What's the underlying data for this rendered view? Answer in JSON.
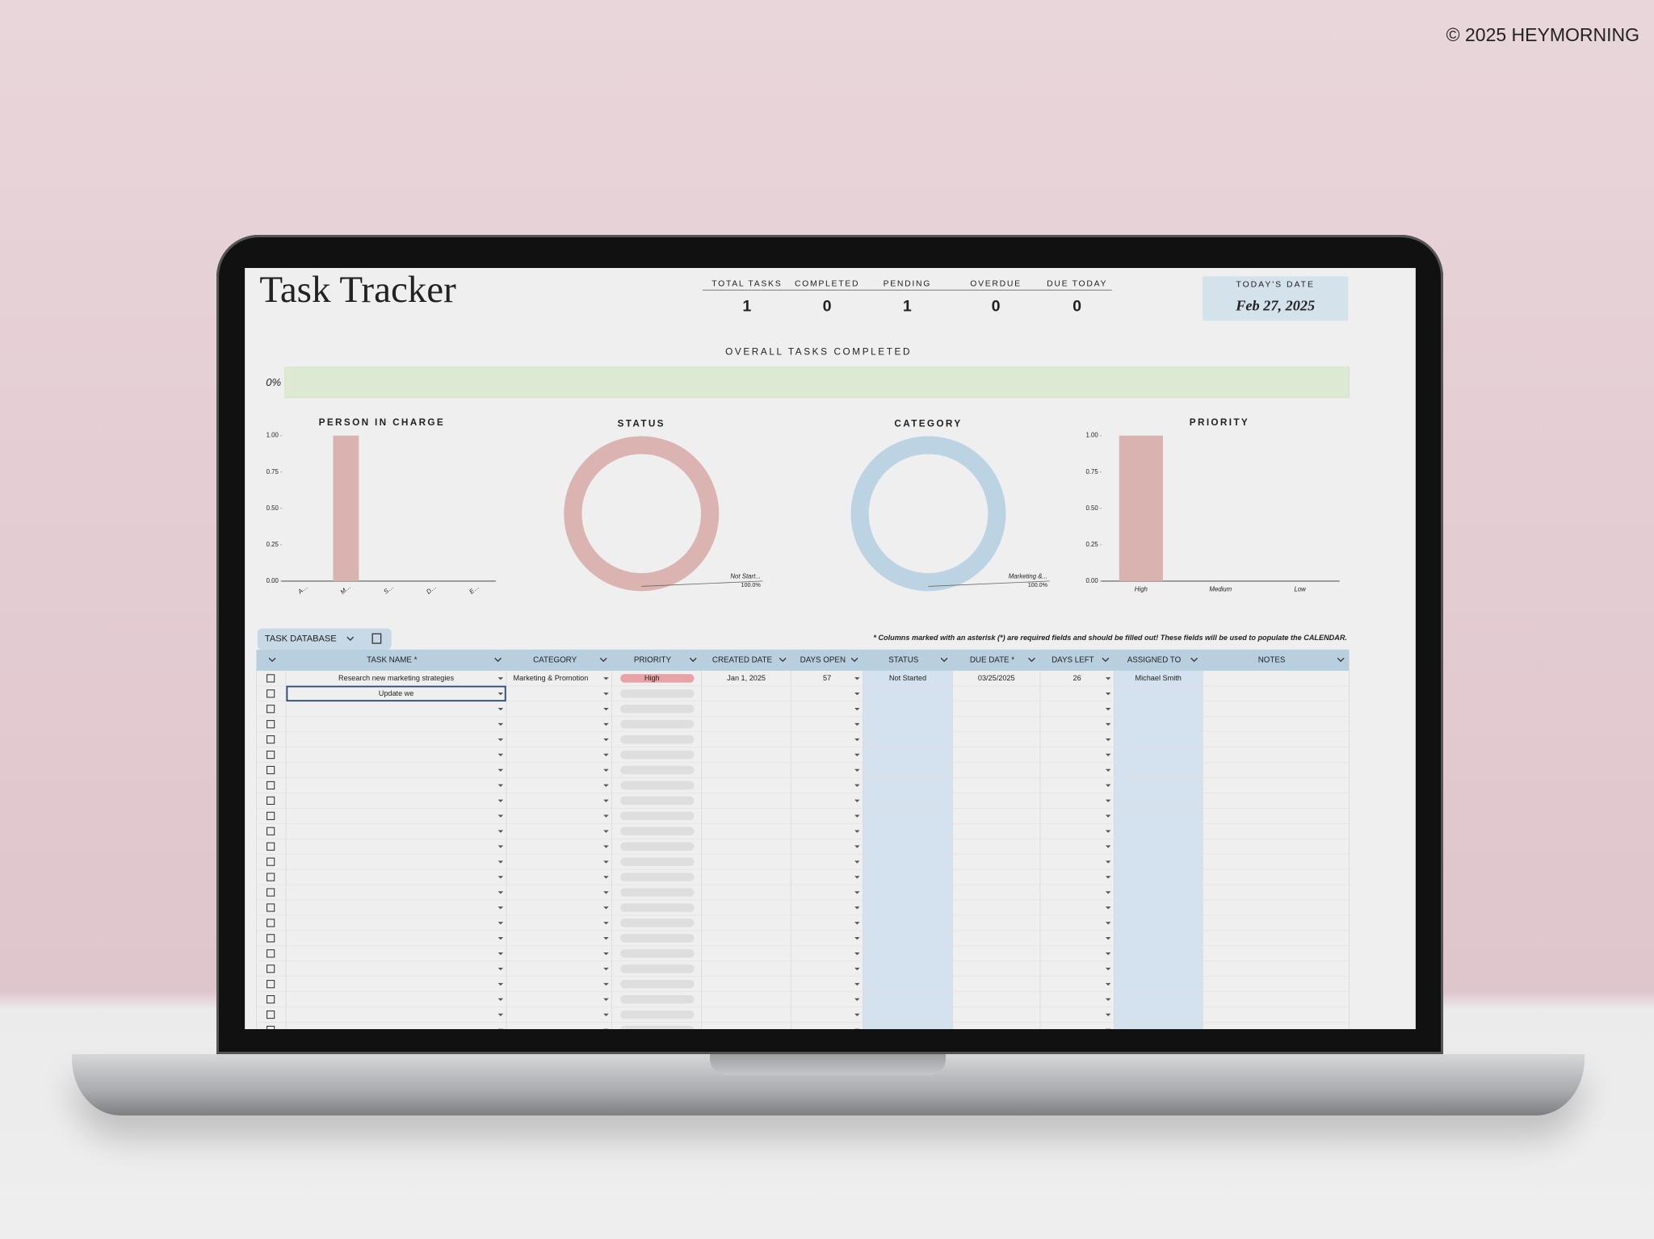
{
  "copyright": "© 2025 HEYMORNING",
  "title": "Task Tracker",
  "stats": [
    {
      "label": "TOTAL TASKS",
      "value": 1
    },
    {
      "label": "COMPLETED",
      "value": 0
    },
    {
      "label": "PENDING",
      "value": 1
    },
    {
      "label": "OVERDUE",
      "value": 0
    },
    {
      "label": "DUE TODAY",
      "value": 0
    }
  ],
  "today": {
    "label": "TODAY'S DATE",
    "value": "Feb 27, 2025"
  },
  "progress": {
    "title": "OVERALL TASKS COMPLETED",
    "label": "0%",
    "value": 0,
    "color": "#d9e8cf"
  },
  "charts": [
    {
      "type": "bar",
      "title": "PERSON IN CHARGE",
      "categories": [
        "A…",
        "M…",
        "S…",
        "D…",
        "E…"
      ],
      "values": [
        0,
        1,
        0,
        0,
        0
      ],
      "color": "#d9b3b0",
      "ylim": [
        0,
        1
      ],
      "yticks": [
        {
          "value": 0,
          "label": "0.00"
        },
        {
          "value": 0.25,
          "label": "0.25"
        },
        {
          "value": 0.5,
          "label": "0.50"
        },
        {
          "value": 0.75,
          "label": "0.75"
        },
        {
          "value": 1,
          "label": "1.00"
        }
      ],
      "grid": false
    },
    {
      "type": "donut",
      "title": "STATUS",
      "categories": [
        "Not Start..."
      ],
      "values": [
        100
      ],
      "value_labels": [
        "100.0%"
      ],
      "color": "#dbb3b0"
    },
    {
      "type": "donut",
      "title": "CATEGORY",
      "categories": [
        "Marketing &..."
      ],
      "values": [
        100
      ],
      "value_labels": [
        "100.0%"
      ],
      "color": "#bcd3e3"
    },
    {
      "type": "bar",
      "title": "PRIORITY",
      "categories": [
        "High",
        "Medium",
        "Low"
      ],
      "values": [
        1,
        0,
        0
      ],
      "color": "#d9b3b0",
      "ylim": [
        0,
        1
      ],
      "yticks": [
        {
          "value": 0,
          "label": "0.00"
        },
        {
          "value": 0.25,
          "label": "0.25"
        },
        {
          "value": 0.5,
          "label": "0.50"
        },
        {
          "value": 0.75,
          "label": "0.75"
        },
        {
          "value": 1,
          "label": "1.00"
        }
      ],
      "grid": false
    }
  ],
  "table": {
    "tab": "TASK DATABASE",
    "note": "* Columns marked with an asterisk (*) are required fields and should be filled out! These fields will be used to populate the CALENDAR.",
    "columns": [
      "TASK NAME *",
      "CATEGORY",
      "PRIORITY",
      "CREATED DATE",
      "DAYS OPEN",
      "STATUS",
      "DUE DATE *",
      "DAYS LEFT",
      "ASSIGNED TO",
      "NOTES"
    ],
    "rows": [
      {
        "task": "Research new marketing strategies",
        "category": "Marketing & Promotion",
        "priority": "High",
        "created": "Jan 1, 2025",
        "days_open": 57,
        "status": "Not Started",
        "due": "03/25/2025",
        "days_left": 26,
        "assigned": "Michael Smith"
      },
      {
        "task": "Update we"
      }
    ]
  }
}
